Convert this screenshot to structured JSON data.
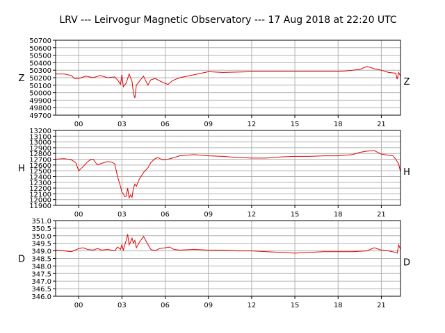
{
  "title": "LRV --- Leirvogur Magnetic Observatory --- 17 Aug 2018 at 22:20 UTC",
  "line_color": "#e00000",
  "grid_color": "#b0b0b0",
  "chart_data": [
    {
      "type": "line",
      "name": "Z",
      "ylabel_left": "Z",
      "ylabel_right": "Z",
      "x_unit": "hours UTC",
      "xlim": [
        -1.6,
        22.33
      ],
      "ylim": [
        49700,
        50700
      ],
      "yticks": [
        49700,
        49800,
        49900,
        50000,
        50100,
        50200,
        50300,
        50400,
        50500,
        50600,
        50700
      ],
      "xticks": [
        0,
        3,
        6,
        9,
        12,
        15,
        18,
        21
      ],
      "xtick_labels": [
        "00",
        "03",
        "06",
        "09",
        "12",
        "15",
        "18",
        "21"
      ],
      "grid": true,
      "x": [
        -1.6,
        -1.0,
        -0.5,
        -0.3,
        0.0,
        0.5,
        1.0,
        1.5,
        2.0,
        2.5,
        2.7,
        2.9,
        3.0,
        3.1,
        3.3,
        3.5,
        3.7,
        3.8,
        3.9,
        4.0,
        4.2,
        4.5,
        4.8,
        5.0,
        5.3,
        5.8,
        6.2,
        6.5,
        7.0,
        8.0,
        9.0,
        10.0,
        12.0,
        15.0,
        18.0,
        19.5,
        20.0,
        20.5,
        21.0,
        21.5,
        22.0,
        22.1,
        22.2,
        22.33
      ],
      "y": [
        50250,
        50250,
        50230,
        50190,
        50190,
        50220,
        50200,
        50230,
        50200,
        50210,
        50170,
        50110,
        50240,
        50080,
        50130,
        50250,
        50150,
        49990,
        49930,
        50100,
        50150,
        50220,
        50100,
        50170,
        50190,
        50140,
        50110,
        50160,
        50200,
        50240,
        50280,
        50270,
        50280,
        50280,
        50280,
        50310,
        50350,
        50320,
        50300,
        50270,
        50260,
        50180,
        50270,
        50220
      ]
    },
    {
      "type": "line",
      "name": "H",
      "ylabel_left": "H",
      "ylabel_right": "H",
      "x_unit": "hours UTC",
      "xlim": [
        -1.6,
        22.33
      ],
      "ylim": [
        11900,
        13200
      ],
      "yticks": [
        11900,
        12000,
        12100,
        12200,
        12300,
        12400,
        12500,
        12600,
        12700,
        12800,
        12900,
        13000,
        13100,
        13200
      ],
      "xticks": [
        0,
        3,
        6,
        9,
        12,
        15,
        18,
        21
      ],
      "xtick_labels": [
        "00",
        "03",
        "06",
        "09",
        "12",
        "15",
        "18",
        "21"
      ],
      "grid": true,
      "x": [
        -1.6,
        -1.0,
        -0.5,
        -0.2,
        0.0,
        0.3,
        0.6,
        0.8,
        1.0,
        1.3,
        1.6,
        2.0,
        2.3,
        2.5,
        2.7,
        2.9,
        3.0,
        3.1,
        3.2,
        3.3,
        3.4,
        3.5,
        3.6,
        3.7,
        3.8,
        3.9,
        4.0,
        4.2,
        4.5,
        4.8,
        5.0,
        5.3,
        5.5,
        5.8,
        6.2,
        6.5,
        7.0,
        8.0,
        9.0,
        10.0,
        11.0,
        12.0,
        13.0,
        14.0,
        15.0,
        16.0,
        17.0,
        18.0,
        19.0,
        19.5,
        20.0,
        20.5,
        21.0,
        21.5,
        21.8,
        22.0,
        22.2,
        22.33
      ],
      "y": [
        12700,
        12710,
        12690,
        12640,
        12500,
        12570,
        12650,
        12690,
        12700,
        12600,
        12630,
        12660,
        12650,
        12620,
        12400,
        12230,
        12130,
        12100,
        12050,
        12060,
        12200,
        12030,
        12080,
        12040,
        12200,
        12270,
        12230,
        12350,
        12470,
        12550,
        12640,
        12710,
        12730,
        12690,
        12700,
        12720,
        12760,
        12780,
        12760,
        12750,
        12730,
        12720,
        12720,
        12740,
        12750,
        12750,
        12760,
        12760,
        12780,
        12820,
        12840,
        12850,
        12790,
        12770,
        12760,
        12700,
        12620,
        12480
      ]
    },
    {
      "type": "line",
      "name": "D",
      "ylabel_left": "D",
      "ylabel_right": "D",
      "x_unit": "hours UTC",
      "xlim": [
        -1.6,
        22.33
      ],
      "ylim": [
        346.0,
        351.0
      ],
      "yticks": [
        "346.0",
        "346.5",
        "347.0",
        "347.5",
        "348.0",
        "348.5",
        "349.0",
        "349.5",
        "350.0",
        "350.5",
        "351.0"
      ],
      "xticks": [
        0,
        3,
        6,
        9,
        12,
        15,
        18,
        21
      ],
      "xtick_labels": [
        "00",
        "03",
        "06",
        "09",
        "12",
        "15",
        "18",
        "21"
      ],
      "grid": true,
      "x": [
        -1.6,
        -1.0,
        -0.5,
        0.0,
        0.3,
        0.6,
        1.0,
        1.3,
        1.6,
        2.0,
        2.5,
        2.7,
        2.9,
        3.0,
        3.1,
        3.2,
        3.3,
        3.4,
        3.5,
        3.6,
        3.7,
        3.8,
        3.9,
        4.0,
        4.2,
        4.5,
        4.7,
        5.0,
        5.3,
        5.6,
        6.0,
        6.3,
        6.6,
        7.0,
        8.0,
        9.0,
        10.0,
        11.0,
        12.0,
        13.0,
        14.0,
        15.0,
        16.0,
        17.0,
        18.0,
        19.0,
        20.0,
        20.5,
        21.0,
        21.5,
        22.0,
        22.1,
        22.2,
        22.33
      ],
      "y": [
        349.05,
        349.0,
        348.95,
        349.15,
        349.2,
        349.1,
        349.05,
        349.15,
        349.05,
        349.1,
        349.0,
        349.25,
        349.1,
        349.4,
        349.05,
        349.4,
        349.7,
        350.1,
        349.4,
        349.6,
        349.85,
        349.5,
        349.7,
        349.2,
        349.55,
        349.95,
        349.6,
        349.1,
        349.0,
        349.15,
        349.2,
        349.25,
        349.1,
        349.05,
        349.1,
        349.05,
        349.05,
        349.0,
        349.0,
        348.95,
        348.9,
        348.85,
        348.9,
        348.95,
        348.95,
        348.95,
        349.0,
        349.2,
        349.05,
        349.0,
        348.9,
        348.85,
        349.4,
        349.1
      ]
    }
  ]
}
